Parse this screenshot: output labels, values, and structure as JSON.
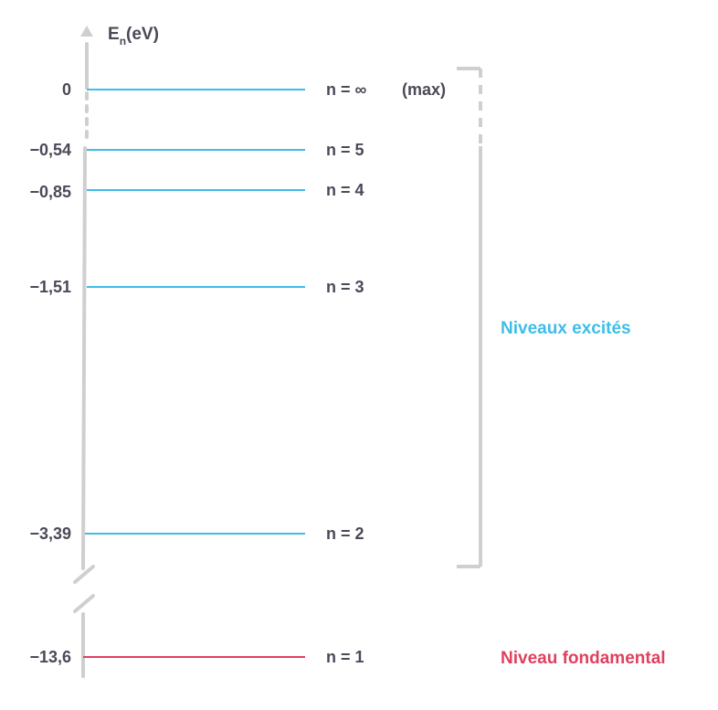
{
  "axis": {
    "symbol": "E",
    "subscript": "n",
    "unit": "(eV)"
  },
  "colors": {
    "excited": "#3fbde8",
    "ground": "#e0405e",
    "axis": "#cfcfcf",
    "text": "#4a4a58"
  },
  "levels": [
    {
      "n_label": "n = ∞",
      "extra": "(max)",
      "energy": 0,
      "value_label": "0",
      "kind": "excited"
    },
    {
      "n_label": "n = 5",
      "extra": "",
      "energy": -0.54,
      "value_label": "−0,54",
      "kind": "excited"
    },
    {
      "n_label": "n = 4",
      "extra": "",
      "energy": -0.85,
      "value_label": "−0,85",
      "kind": "excited"
    },
    {
      "n_label": "n = 3",
      "extra": "",
      "energy": -1.51,
      "value_label": "−1,51",
      "kind": "excited"
    },
    {
      "n_label": "n = 2",
      "extra": "",
      "energy": -3.39,
      "value_label": "−3,39",
      "kind": "excited"
    },
    {
      "n_label": "n = 1",
      "extra": "",
      "energy": -13.6,
      "value_label": "−13,6",
      "kind": "ground"
    }
  ],
  "groups": {
    "excited_label": "Niveaux excités",
    "ground_label": "Niveau fondamental"
  }
}
